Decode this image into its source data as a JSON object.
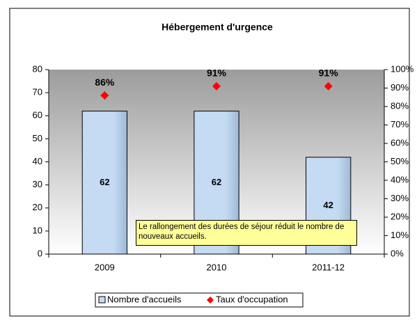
{
  "chart_data": {
    "type": "bar",
    "title": "Hébergement d'urgence",
    "categories": [
      "2009",
      "2010",
      "2011-12"
    ],
    "series": [
      {
        "name": "Nombre d'accueils",
        "color": "#c4dbf3",
        "values": [
          62,
          62,
          42
        ]
      },
      {
        "name": "Taux d'occupation",
        "color": "#ff0000",
        "values": [
          86,
          91,
          91
        ],
        "value_labels": [
          "86%",
          "91%",
          "91%"
        ],
        "axis": "y2",
        "type": "scatter"
      }
    ],
    "ylim": [
      0,
      80
    ],
    "yticks": [
      0,
      10,
      20,
      30,
      40,
      50,
      60,
      70,
      80
    ],
    "y2lim": [
      0,
      100
    ],
    "y2ticks": [
      {
        "value": 0,
        "label": "0%"
      },
      {
        "value": 10,
        "label": "10%"
      },
      {
        "value": 20,
        "label": "20%"
      },
      {
        "value": 30,
        "label": "30%"
      },
      {
        "value": 40,
        "label": "40%"
      },
      {
        "value": 50,
        "label": "50%"
      },
      {
        "value": 60,
        "label": "60%"
      },
      {
        "value": 70,
        "label": "70%"
      },
      {
        "value": 80,
        "label": "80%"
      },
      {
        "value": 90,
        "label": "90%"
      },
      {
        "value": 100,
        "label": "100%"
      }
    ],
    "annotation": "Le rallongement des durées de séjour réduit le nombre de nouveaux accueils.",
    "legend": "bottom"
  }
}
